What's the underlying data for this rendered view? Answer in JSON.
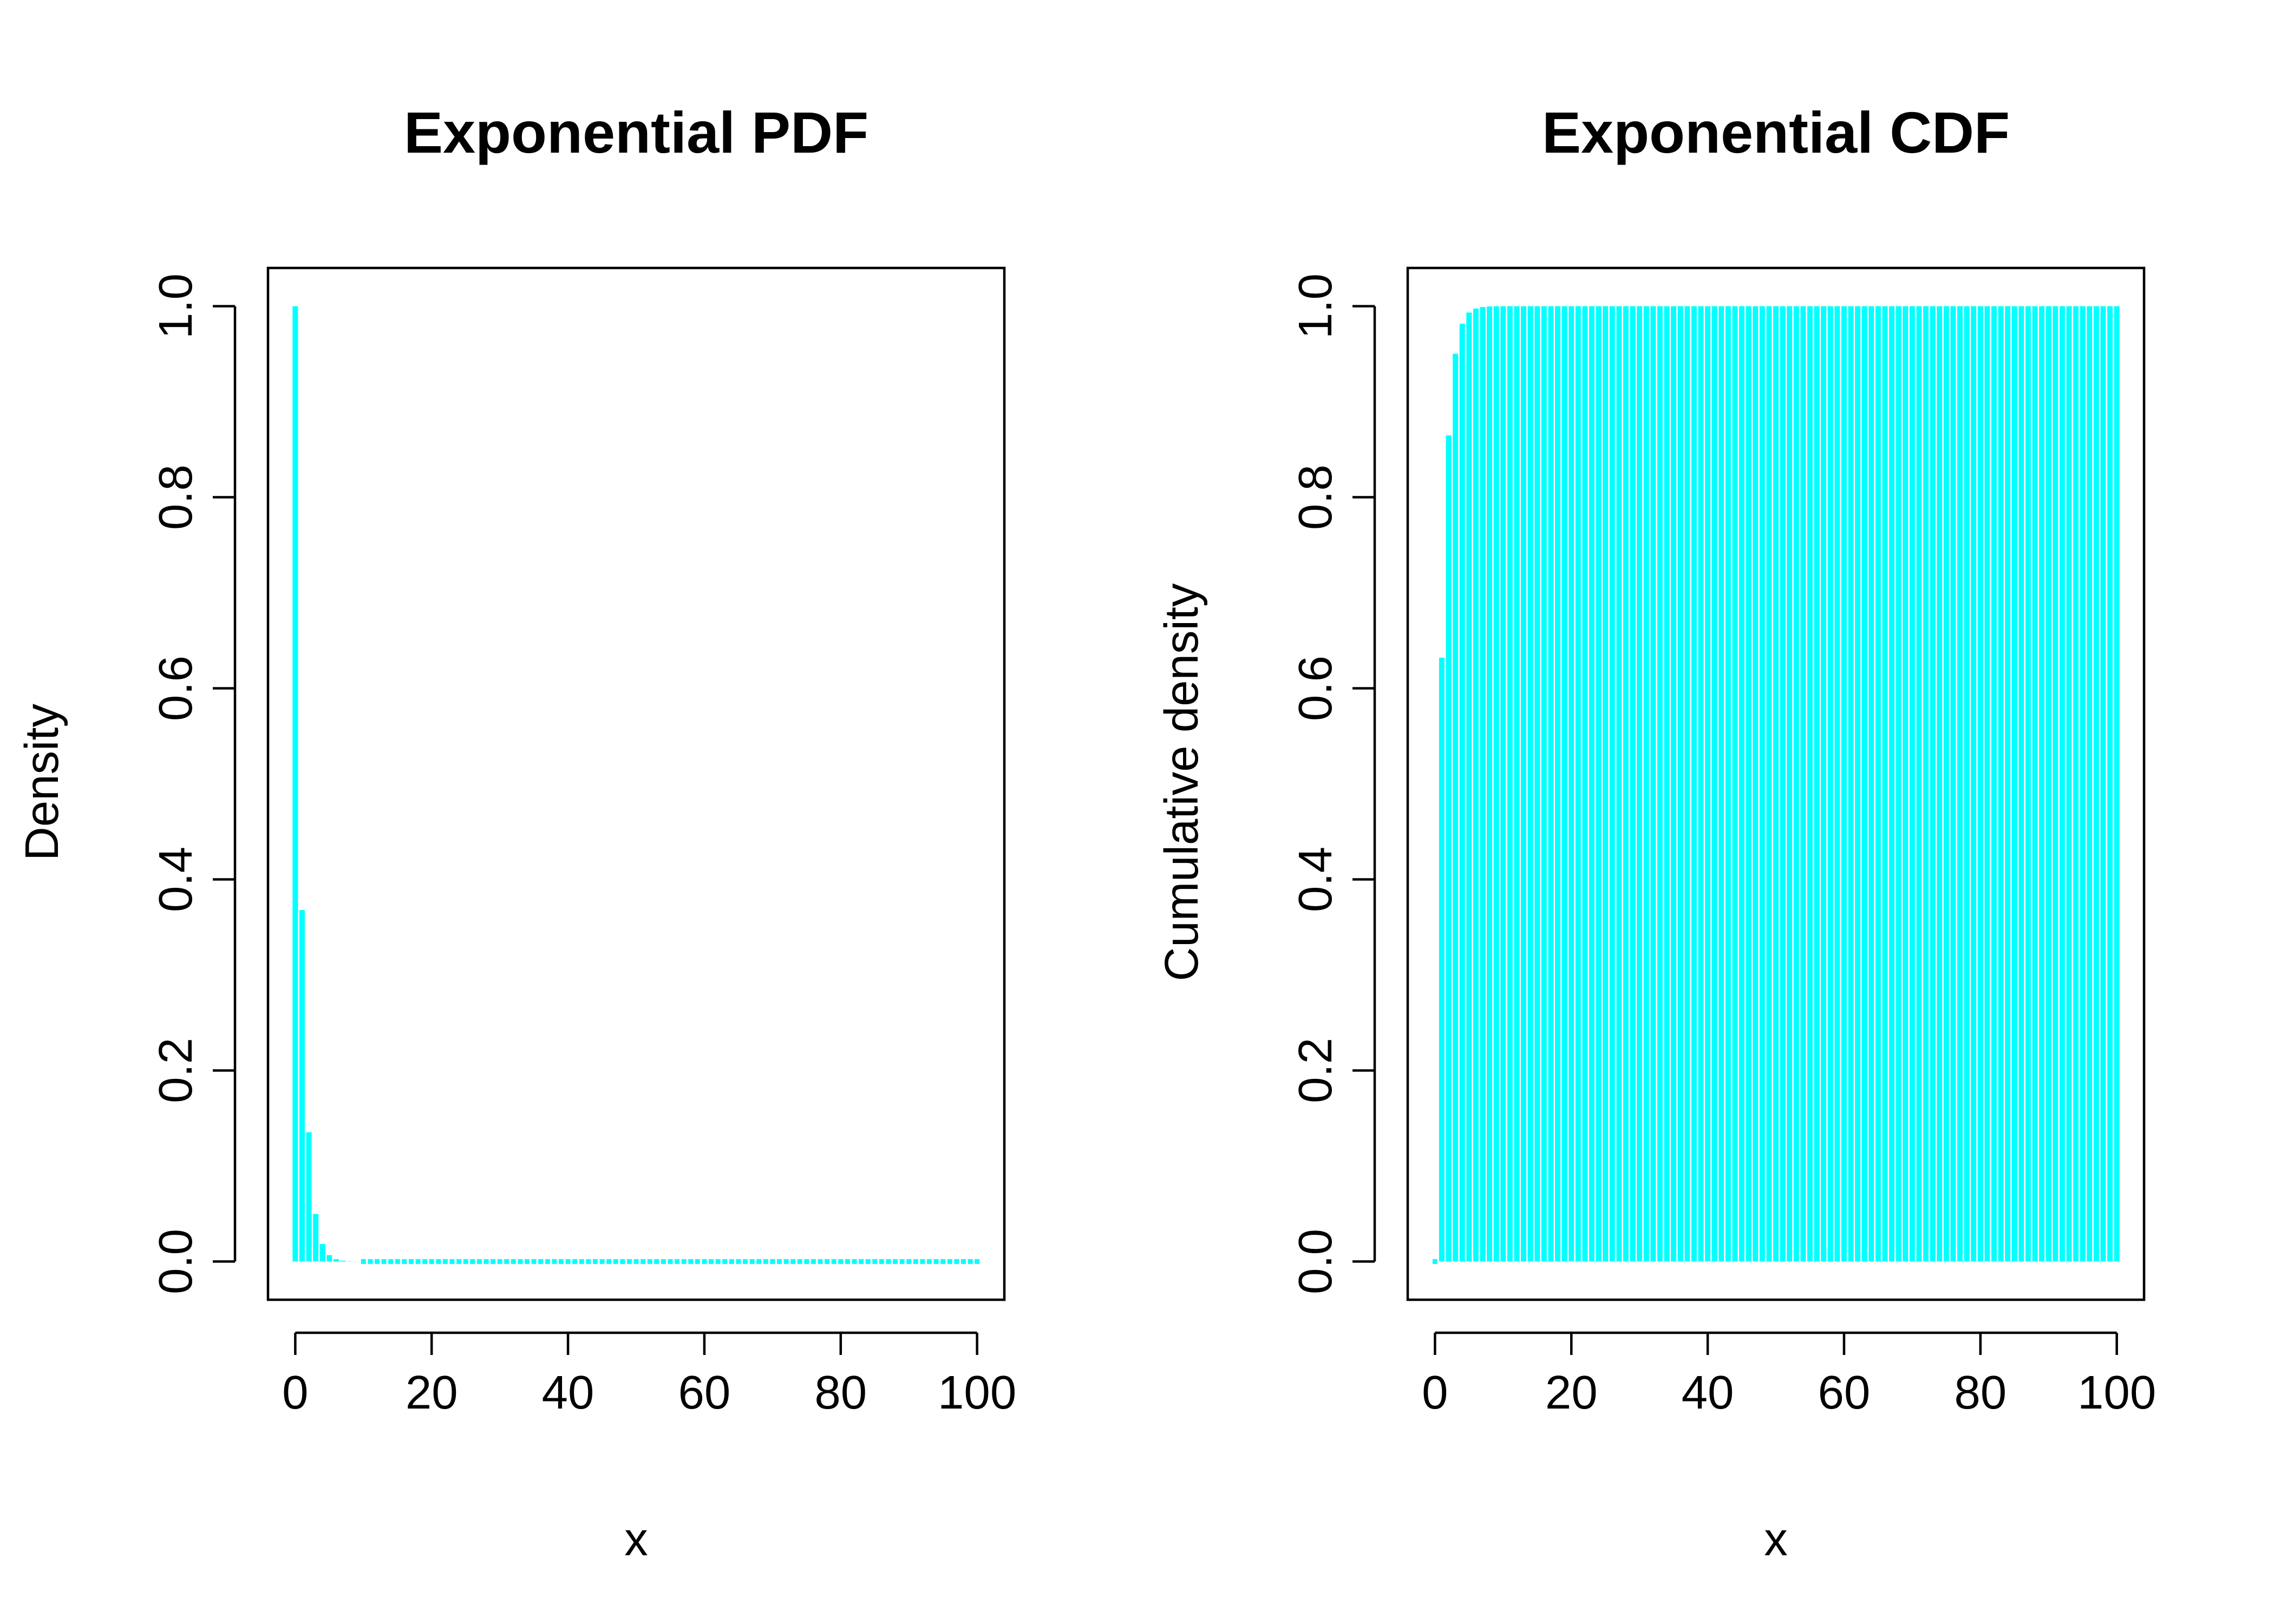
{
  "chart_data": [
    {
      "type": "bar",
      "title": "Exponential PDF",
      "xlabel": "x",
      "ylabel": "Density",
      "distribution": "exponential",
      "rate": 1,
      "x": [
        0,
        1,
        2,
        3,
        4,
        5,
        6,
        7,
        8,
        9,
        10,
        11,
        12,
        13,
        14,
        15,
        16,
        17,
        18,
        19,
        20,
        21,
        22,
        23,
        24,
        25,
        26,
        27,
        28,
        29,
        30,
        31,
        32,
        33,
        34,
        35,
        36,
        37,
        38,
        39,
        40,
        41,
        42,
        43,
        44,
        45,
        46,
        47,
        48,
        49,
        50,
        51,
        52,
        53,
        54,
        55,
        56,
        57,
        58,
        59,
        60,
        61,
        62,
        63,
        64,
        65,
        66,
        67,
        68,
        69,
        70,
        71,
        72,
        73,
        74,
        75,
        76,
        77,
        78,
        79,
        80,
        81,
        82,
        83,
        84,
        85,
        86,
        87,
        88,
        89,
        90,
        91,
        92,
        93,
        94,
        95,
        96,
        97,
        98,
        99,
        100
      ],
      "y": [
        1.0,
        0.3679,
        0.1353,
        0.0498,
        0.0183,
        0.0067,
        0.0025,
        0.0009,
        0.0003,
        0.0001,
        0,
        0,
        0,
        0,
        0,
        0,
        0,
        0,
        0,
        0,
        0,
        0,
        0,
        0,
        0,
        0,
        0,
        0,
        0,
        0,
        0,
        0,
        0,
        0,
        0,
        0,
        0,
        0,
        0,
        0,
        0,
        0,
        0,
        0,
        0,
        0,
        0,
        0,
        0,
        0,
        0,
        0,
        0,
        0,
        0,
        0,
        0,
        0,
        0,
        0,
        0,
        0,
        0,
        0,
        0,
        0,
        0,
        0,
        0,
        0,
        0,
        0,
        0,
        0,
        0,
        0,
        0,
        0,
        0,
        0,
        0,
        0,
        0,
        0,
        0,
        0,
        0,
        0,
        0,
        0,
        0,
        0,
        0,
        0,
        0,
        0,
        0,
        0,
        0,
        0,
        0
      ],
      "xlim": [
        -4,
        104
      ],
      "ylim": [
        -0.04,
        1.04
      ],
      "xticks": [
        0,
        20,
        40,
        60,
        80,
        100
      ],
      "xtick_labels": [
        "0",
        "20",
        "40",
        "60",
        "80",
        "100"
      ],
      "yticks": [
        0.0,
        0.2,
        0.4,
        0.6,
        0.8,
        1.0
      ],
      "ytick_labels": [
        "0.0",
        "0.2",
        "0.4",
        "0.6",
        "0.8",
        "1.0"
      ],
      "color": "#00FFFF",
      "grid": false
    },
    {
      "type": "bar",
      "title": "Exponential CDF",
      "xlabel": "x",
      "ylabel": "Cumulative density",
      "distribution": "exponential",
      "rate": 1,
      "x": [
        0,
        1,
        2,
        3,
        4,
        5,
        6,
        7,
        8,
        9,
        10,
        11,
        12,
        13,
        14,
        15,
        16,
        17,
        18,
        19,
        20,
        21,
        22,
        23,
        24,
        25,
        26,
        27,
        28,
        29,
        30,
        31,
        32,
        33,
        34,
        35,
        36,
        37,
        38,
        39,
        40,
        41,
        42,
        43,
        44,
        45,
        46,
        47,
        48,
        49,
        50,
        51,
        52,
        53,
        54,
        55,
        56,
        57,
        58,
        59,
        60,
        61,
        62,
        63,
        64,
        65,
        66,
        67,
        68,
        69,
        70,
        71,
        72,
        73,
        74,
        75,
        76,
        77,
        78,
        79,
        80,
        81,
        82,
        83,
        84,
        85,
        86,
        87,
        88,
        89,
        90,
        91,
        92,
        93,
        94,
        95,
        96,
        97,
        98,
        99,
        100
      ],
      "y": [
        0,
        0.6321,
        0.8647,
        0.9502,
        0.9817,
        0.9933,
        0.9975,
        0.9991,
        0.9997,
        0.9999,
        1,
        1,
        1,
        1,
        1,
        1,
        1,
        1,
        1,
        1,
        1,
        1,
        1,
        1,
        1,
        1,
        1,
        1,
        1,
        1,
        1,
        1,
        1,
        1,
        1,
        1,
        1,
        1,
        1,
        1,
        1,
        1,
        1,
        1,
        1,
        1,
        1,
        1,
        1,
        1,
        1,
        1,
        1,
        1,
        1,
        1,
        1,
        1,
        1,
        1,
        1,
        1,
        1,
        1,
        1,
        1,
        1,
        1,
        1,
        1,
        1,
        1,
        1,
        1,
        1,
        1,
        1,
        1,
        1,
        1,
        1,
        1,
        1,
        1,
        1,
        1,
        1,
        1,
        1,
        1,
        1,
        1,
        1,
        1,
        1,
        1,
        1,
        1,
        1,
        1,
        1
      ],
      "xlim": [
        -4,
        104
      ],
      "ylim": [
        -0.04,
        1.04
      ],
      "xticks": [
        0,
        20,
        40,
        60,
        80,
        100
      ],
      "xtick_labels": [
        "0",
        "20",
        "40",
        "60",
        "80",
        "100"
      ],
      "yticks": [
        0.0,
        0.2,
        0.4,
        0.6,
        0.8,
        1.0
      ],
      "ytick_labels": [
        "0.0",
        "0.2",
        "0.4",
        "0.6",
        "0.8",
        "1.0"
      ],
      "color": "#00FFFF",
      "grid": false
    }
  ]
}
